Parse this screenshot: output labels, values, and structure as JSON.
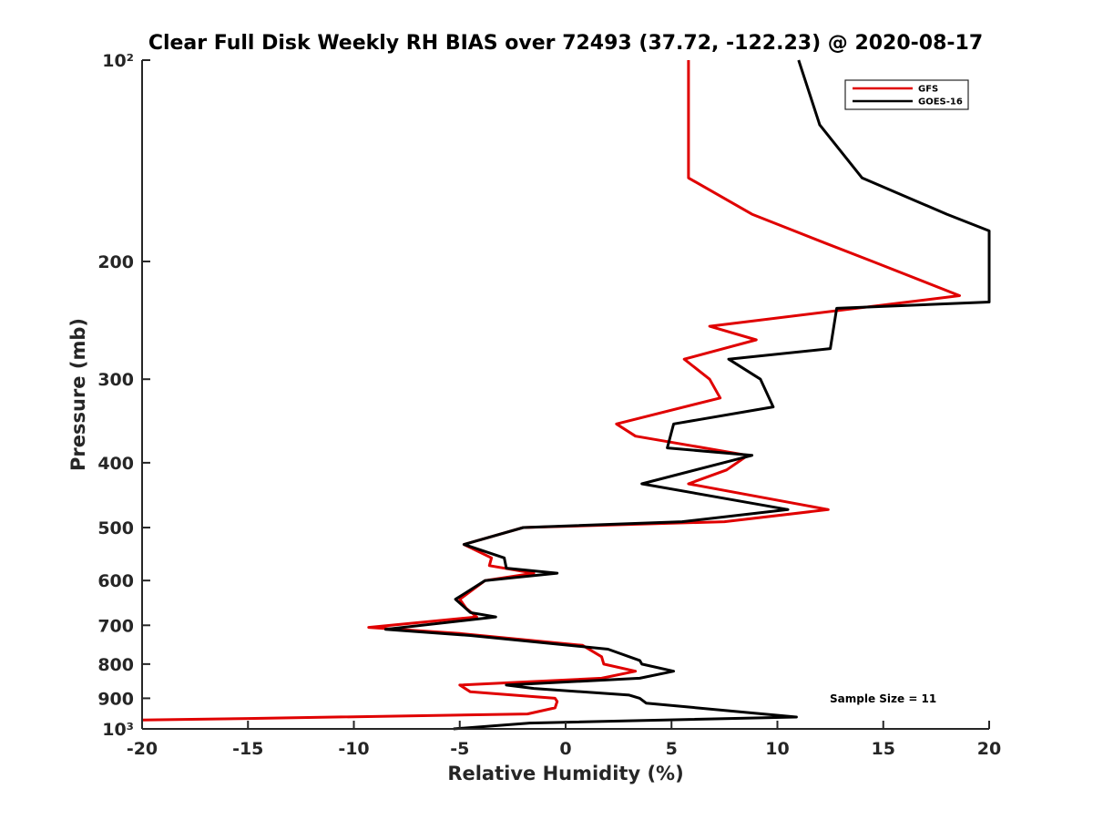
{
  "chart_data": {
    "type": "line",
    "title": "Clear Full Disk Weekly RH BIAS over 72493 (37.72, -122.23) @ 2020-08-17",
    "xlabel": "Relative Humidity (%)",
    "ylabel": "Pressure (mb)",
    "xlim": [
      -20,
      20
    ],
    "ylim": [
      100,
      1000
    ],
    "y_scale": "log",
    "y_reversed": true,
    "grid": false,
    "legend_position": "top-right",
    "x_ticks": [
      -20,
      -15,
      -10,
      -5,
      0,
      5,
      10,
      15,
      20
    ],
    "x_tick_labels": [
      "-20",
      "-15",
      "-10",
      "-5",
      "0",
      "5",
      "10",
      "15",
      "20"
    ],
    "y_ticks": [
      100,
      200,
      300,
      400,
      500,
      600,
      700,
      800,
      900,
      1000
    ],
    "y_tick_labels": [
      "10²",
      "200",
      "300",
      "400",
      "500",
      "600",
      "700",
      "800",
      "900",
      "10³"
    ],
    "annotation": "Sample Size = 11",
    "series": [
      {
        "name": "GFS",
        "color": "#e00000",
        "points": [
          [
            5.8,
            100
          ],
          [
            5.8,
            125
          ],
          [
            5.8,
            150
          ],
          [
            8.8,
            170
          ],
          [
            12.3,
            188
          ],
          [
            14.5,
            200
          ],
          [
            18.6,
            225
          ],
          [
            6.8,
            250
          ],
          [
            9.0,
            262
          ],
          [
            5.6,
            280
          ],
          [
            6.8,
            300
          ],
          [
            7.3,
            320
          ],
          [
            2.4,
            350
          ],
          [
            3.3,
            365
          ],
          [
            8.6,
            390
          ],
          [
            7.6,
            410
          ],
          [
            5.8,
            430
          ],
          [
            12.4,
            470
          ],
          [
            7.5,
            490
          ],
          [
            -2.0,
            500
          ],
          [
            -4.8,
            530
          ],
          [
            -3.5,
            555
          ],
          [
            -3.6,
            570
          ],
          [
            -1.5,
            585
          ],
          [
            -3.8,
            600
          ],
          [
            -5.0,
            640
          ],
          [
            -4.7,
            660
          ],
          [
            -4.2,
            680
          ],
          [
            -9.3,
            705
          ],
          [
            -5.0,
            720
          ],
          [
            0.8,
            750
          ],
          [
            1.7,
            780
          ],
          [
            1.8,
            800
          ],
          [
            3.3,
            820
          ],
          [
            1.7,
            840
          ],
          [
            -5.0,
            860
          ],
          [
            -4.5,
            880
          ],
          [
            -0.5,
            900
          ],
          [
            -0.4,
            910
          ],
          [
            -0.5,
            930
          ],
          [
            -1.8,
            950
          ],
          [
            -15.0,
            965
          ],
          [
            -20.0,
            970
          ]
        ]
      },
      {
        "name": "GOES-16",
        "color": "#000000",
        "points": [
          [
            11.0,
            100
          ],
          [
            12.0,
            125
          ],
          [
            14.0,
            150
          ],
          [
            18.0,
            170
          ],
          [
            20.0,
            180
          ],
          [
            20.0,
            230
          ],
          [
            12.8,
            235
          ],
          [
            12.5,
            270
          ],
          [
            7.7,
            280
          ],
          [
            9.2,
            300
          ],
          [
            9.8,
            330
          ],
          [
            5.1,
            350
          ],
          [
            4.8,
            380
          ],
          [
            8.8,
            390
          ],
          [
            3.6,
            430
          ],
          [
            10.5,
            470
          ],
          [
            5.5,
            490
          ],
          [
            -2.0,
            500
          ],
          [
            -4.8,
            530
          ],
          [
            -2.9,
            555
          ],
          [
            -2.8,
            575
          ],
          [
            -0.4,
            585
          ],
          [
            -3.8,
            600
          ],
          [
            -5.2,
            640
          ],
          [
            -4.5,
            670
          ],
          [
            -3.3,
            680
          ],
          [
            -8.5,
            710
          ],
          [
            -4.5,
            725
          ],
          [
            2.0,
            760
          ],
          [
            3.5,
            790
          ],
          [
            3.6,
            800
          ],
          [
            5.1,
            820
          ],
          [
            3.5,
            840
          ],
          [
            -2.8,
            860
          ],
          [
            -1.5,
            870
          ],
          [
            3.0,
            890
          ],
          [
            3.5,
            900
          ],
          [
            3.8,
            915
          ],
          [
            10.9,
            960
          ],
          [
            -1.7,
            980
          ],
          [
            -5.3,
            1000
          ]
        ]
      }
    ]
  }
}
